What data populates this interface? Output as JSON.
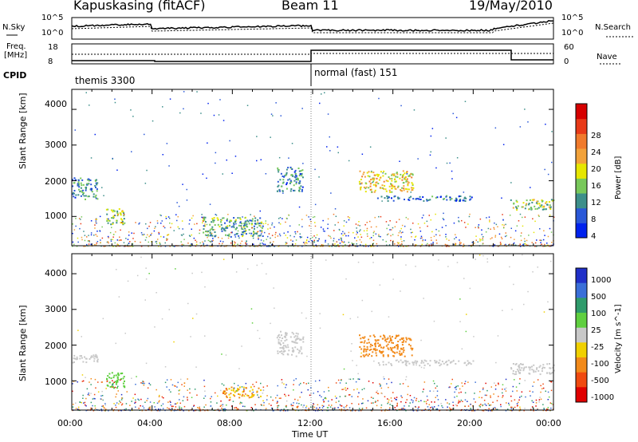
{
  "header": {
    "station": "Kapuskasing (fitACF)",
    "beam": "Beam 11",
    "date": "19/May/2010"
  },
  "sky_panel": {
    "left_label": "N.Sky",
    "right_label": "N.Search",
    "left_ticks": [
      "10^5",
      "10^0"
    ],
    "right_ticks": [
      "10^5",
      "10^0"
    ]
  },
  "freq_panel": {
    "left_label_top": "Freq.",
    "left_label_bottom": "[MHz]",
    "right_label": "Nave",
    "left_ticks": [
      "18",
      "8"
    ],
    "right_ticks": [
      "60",
      "0"
    ]
  },
  "cpid": {
    "label": "CPID",
    "segments": [
      {
        "name": "themis 3300",
        "start_hour": 0,
        "end_hour": 12
      },
      {
        "name": "normal (fast) 151",
        "start_hour": 12,
        "end_hour": 24
      }
    ]
  },
  "colors": {
    "power": [
      "#0022ee",
      "#2a58d8",
      "#3d8f8a",
      "#78c85a",
      "#e6e600",
      "#f2a23a",
      "#f07a2c",
      "#e83a18",
      "#d60000"
    ],
    "velocity": [
      "#2030c8",
      "#3a6fd8",
      "#2f9b6b",
      "#5fcf3f",
      "#c8c8c8",
      "#f0d000",
      "#f28a1a",
      "#f04a10",
      "#e00000"
    ]
  },
  "chart_data": [
    {
      "type": "heatmap",
      "title": "",
      "xlabel": "",
      "ylabel": "Slant Range [km]",
      "x_ticks": [
        "00:00",
        "04:00",
        "08:00",
        "12:00",
        "16:00",
        "20:00",
        "00:00"
      ],
      "y_ticks": [
        "1000",
        "2000",
        "3000",
        "4000"
      ],
      "xlim": [
        0,
        24
      ],
      "ylim": [
        180,
        4560
      ],
      "colorbar": {
        "label": "Power [dB]",
        "ticks": [
          "4",
          "8",
          "12",
          "16",
          "20",
          "24",
          "28"
        ],
        "range": [
          0,
          30
        ]
      },
      "blobs": [
        {
          "t0": 0.0,
          "t1": 1.3,
          "r0": 1500,
          "r1": 2100,
          "v": 8
        },
        {
          "t0": 1.6,
          "t1": 2.6,
          "r0": 800,
          "r1": 1250,
          "v": 12
        },
        {
          "t0": 6.5,
          "t1": 9.5,
          "r0": 450,
          "r1": 1000,
          "v": 10
        },
        {
          "t0": 10.2,
          "t1": 11.5,
          "r0": 1700,
          "r1": 2400,
          "v": 8
        },
        {
          "t0": 14.3,
          "t1": 17.0,
          "r0": 1700,
          "r1": 2300,
          "v": 16
        },
        {
          "t0": 15.2,
          "t1": 20.0,
          "r0": 1450,
          "r1": 1600,
          "v": 6
        },
        {
          "t0": 21.8,
          "t1": 24.0,
          "r0": 1200,
          "r1": 1500,
          "v": 13
        }
      ]
    },
    {
      "type": "heatmap",
      "title": "",
      "xlabel": "Time UT",
      "ylabel": "Slant Range [km]",
      "x_ticks": [
        "00:00",
        "04:00",
        "08:00",
        "12:00",
        "16:00",
        "20:00",
        "00:00"
      ],
      "y_ticks": [
        "1000",
        "2000",
        "3000",
        "4000"
      ],
      "xlim": [
        0,
        24
      ],
      "ylim": [
        180,
        4560
      ],
      "colorbar": {
        "label": "Velocity [m s^-1]",
        "ticks": [
          "1000",
          "500",
          "100",
          "25",
          "-25",
          "-100",
          "-500",
          "-1000"
        ]
      },
      "blobs": [
        {
          "t0": 0.0,
          "t1": 1.3,
          "r0": 1500,
          "r1": 1750,
          "v": 0
        },
        {
          "t0": 1.6,
          "t1": 2.6,
          "r0": 800,
          "r1": 1250,
          "v": 50
        },
        {
          "t0": 7.5,
          "t1": 9.5,
          "r0": 550,
          "r1": 850,
          "v": -100
        },
        {
          "t0": 10.2,
          "t1": 11.5,
          "r0": 1700,
          "r1": 2400,
          "v": 0
        },
        {
          "t0": 14.3,
          "t1": 17.0,
          "r0": 1700,
          "r1": 2300,
          "v": -300
        },
        {
          "t0": 15.2,
          "t1": 20.0,
          "r0": 1450,
          "r1": 1600,
          "v": 0
        },
        {
          "t0": 21.8,
          "t1": 24.0,
          "r0": 1200,
          "r1": 1500,
          "v": 0
        }
      ]
    }
  ]
}
